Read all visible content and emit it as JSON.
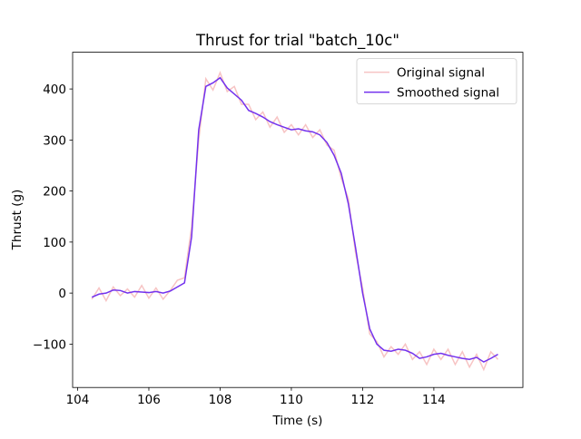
{
  "chart_data": {
    "type": "line",
    "title": "Thrust for trial \"batch_10c\"",
    "x_label": "Time (s)",
    "y_label": "Thrust (g)",
    "x": [
      104.4,
      104.6,
      104.8,
      105.0,
      105.2,
      105.4,
      105.6,
      105.8,
      106.0,
      106.2,
      106.4,
      106.6,
      106.8,
      107.0,
      107.2,
      107.4,
      107.6,
      107.8,
      108.0,
      108.2,
      108.4,
      108.6,
      108.8,
      109.0,
      109.2,
      109.4,
      109.6,
      109.8,
      110.0,
      110.2,
      110.4,
      110.6,
      110.8,
      111.0,
      111.2,
      111.4,
      111.6,
      111.8,
      112.0,
      112.2,
      112.4,
      112.6,
      112.8,
      113.0,
      113.2,
      113.4,
      113.6,
      113.8,
      114.0,
      114.2,
      114.4,
      114.6,
      114.8,
      115.0,
      115.2,
      115.4,
      115.6,
      115.8
    ],
    "series": [
      {
        "name": "Original signal",
        "color": "#f7c4c4",
        "values": [
          -12,
          10,
          -15,
          12,
          -5,
          8,
          -8,
          15,
          -10,
          10,
          -12,
          5,
          25,
          30,
          130,
          300,
          420,
          398,
          432,
          395,
          405,
          370,
          370,
          340,
          355,
          325,
          345,
          315,
          330,
          310,
          330,
          305,
          320,
          290,
          280,
          225,
          185,
          80,
          10,
          -80,
          -95,
          -125,
          -105,
          -120,
          -100,
          -130,
          -115,
          -140,
          -110,
          -130,
          -110,
          -140,
          -115,
          -145,
          -120,
          -150,
          -115,
          -130
        ]
      },
      {
        "name": "Smoothed signal",
        "color": "#7332ee",
        "values": [
          -8,
          -2,
          0,
          6,
          5,
          0,
          3,
          2,
          1,
          3,
          0,
          4,
          12,
          20,
          110,
          320,
          405,
          412,
          422,
          402,
          390,
          378,
          358,
          352,
          345,
          336,
          330,
          325,
          320,
          322,
          318,
          316,
          310,
          295,
          270,
          235,
          175,
          90,
          0,
          -70,
          -100,
          -112,
          -114,
          -110,
          -112,
          -118,
          -128,
          -125,
          -120,
          -118,
          -122,
          -125,
          -128,
          -130,
          -126,
          -135,
          -128,
          -120
        ]
      }
    ],
    "xlim": [
      103.86,
      116.5
    ],
    "xticks": [
      104,
      106,
      108,
      110,
      112,
      114
    ],
    "ylim": [
      -185,
      472
    ],
    "yticks": [
      {
        "value": -100,
        "label": "−100"
      },
      0,
      100,
      200,
      300,
      400
    ],
    "legend": "upper right"
  }
}
